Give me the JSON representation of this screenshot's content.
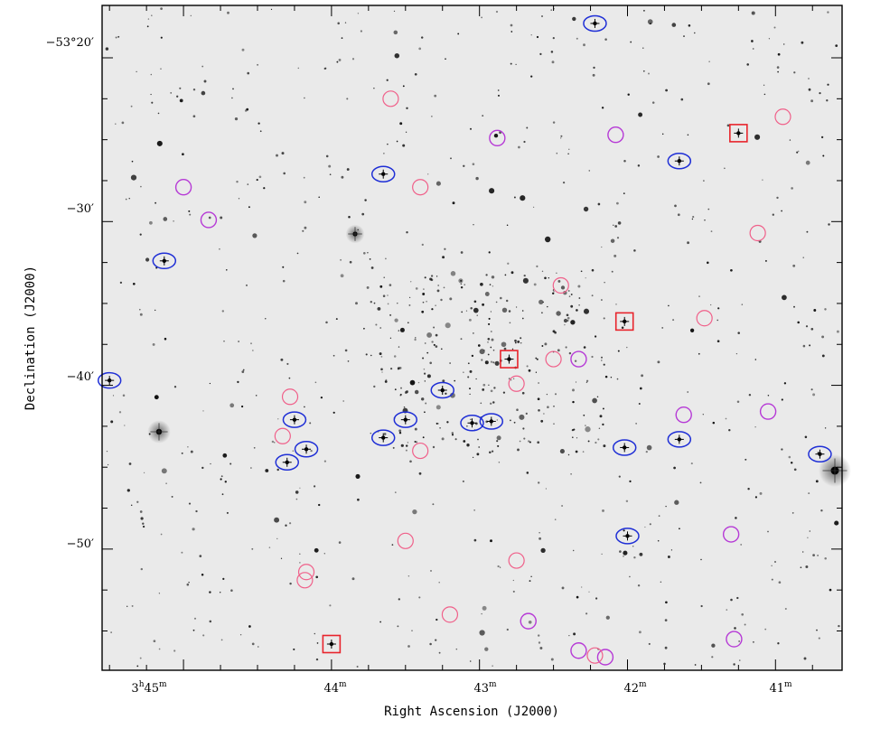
{
  "figure": {
    "x_axis_title": "Right Ascension (J2000)",
    "y_axis_title": "Declination (J2000)",
    "x_ticks": [
      {
        "h": "3",
        "m": "45"
      },
      {
        "h": "",
        "m": "44"
      },
      {
        "h": "",
        "m": "43"
      },
      {
        "h": "",
        "m": "42"
      },
      {
        "h": "",
        "m": "41"
      }
    ],
    "y_ticks": [
      {
        "deg": "−53",
        "min": "20",
        "label": "−53°20′"
      },
      {
        "deg": "",
        "min": "30",
        "label": "−30′"
      },
      {
        "deg": "",
        "min": "40",
        "label": "−40′"
      },
      {
        "deg": "",
        "min": "50",
        "label": "−50′"
      }
    ]
  },
  "chart_data": {
    "type": "scatter",
    "title": "",
    "xlabel": "Right Ascension (J2000)",
    "ylabel": "Declination (J2000)",
    "x_units": "minutes of RA offset from 3h",
    "y_units": "arcmin south of -53°",
    "xlim": [
      45.55,
      40.55
    ],
    "ylim": [
      16.8,
      57.4
    ],
    "grid": false,
    "colors": {
      "blue_ellipse": "#1f2fd6",
      "magenta_circle": "#b63ad6",
      "pink_circle": "#f0608a",
      "red_square": "#e8242c"
    },
    "series": [
      {
        "marker": "blue-ellipse",
        "points": [
          [
            42.22,
            17.9
          ],
          [
            41.65,
            26.3
          ],
          [
            43.65,
            27.1
          ],
          [
            45.13,
            32.4
          ],
          [
            45.5,
            39.7
          ],
          [
            43.25,
            40.3
          ],
          [
            44.25,
            42.1
          ],
          [
            43.5,
            42.1
          ],
          [
            43.05,
            42.3
          ],
          [
            42.92,
            42.2
          ],
          [
            43.65,
            43.2
          ],
          [
            41.65,
            43.3
          ],
          [
            42.02,
            43.8
          ],
          [
            44.17,
            43.9
          ],
          [
            44.3,
            44.7
          ],
          [
            40.7,
            44.2
          ],
          [
            42.0,
            49.2
          ]
        ]
      },
      {
        "marker": "magenta-circle",
        "points": [
          [
            42.08,
            24.7
          ],
          [
            42.88,
            24.9
          ],
          [
            45.0,
            27.9
          ],
          [
            44.83,
            29.9
          ],
          [
            42.33,
            38.4
          ],
          [
            41.62,
            41.8
          ],
          [
            41.05,
            41.6
          ],
          [
            41.3,
            49.1
          ],
          [
            42.67,
            54.4
          ],
          [
            42.33,
            56.2
          ],
          [
            42.15,
            56.6
          ],
          [
            41.28,
            55.5
          ]
        ]
      },
      {
        "marker": "pink-circle",
        "points": [
          [
            43.6,
            22.5
          ],
          [
            40.95,
            23.6
          ],
          [
            43.4,
            27.9
          ],
          [
            41.12,
            30.7
          ],
          [
            42.45,
            33.9
          ],
          [
            41.48,
            35.9
          ],
          [
            42.5,
            38.4
          ],
          [
            42.75,
            39.9
          ],
          [
            44.28,
            40.7
          ],
          [
            44.33,
            43.1
          ],
          [
            43.4,
            44.0
          ],
          [
            43.5,
            49.5
          ],
          [
            42.75,
            50.7
          ],
          [
            44.17,
            51.4
          ],
          [
            44.18,
            51.9
          ],
          [
            43.2,
            54.0
          ],
          [
            42.22,
            56.5
          ]
        ]
      },
      {
        "marker": "red-square",
        "points": [
          [
            41.25,
            24.6
          ],
          [
            42.02,
            36.1
          ],
          [
            42.8,
            38.4
          ],
          [
            44.0,
            55.8
          ]
        ]
      }
    ]
  }
}
